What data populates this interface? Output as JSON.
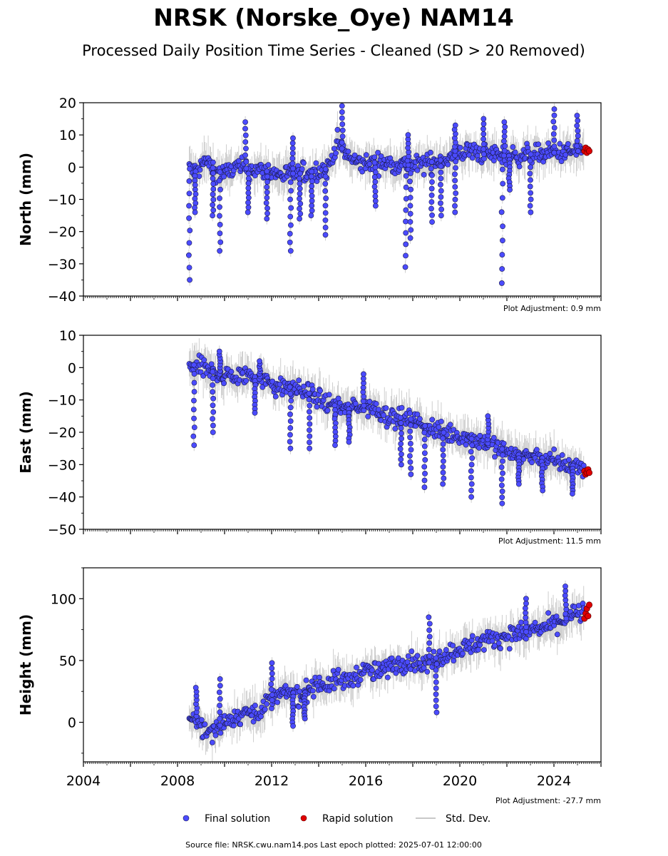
{
  "figure": {
    "title": "NRSK (Norske_Oye) NAM14",
    "subtitle": "Processed Daily Position Time Series - Cleaned (SD > 20 Removed)",
    "source_text": "Source file: NRSK.cwu.nam14.pos  Last epoch plotted: 2025-07-01 12:00:00"
  },
  "legend": {
    "final_label": "Final solution",
    "rapid_label": "Rapid solution",
    "std_label": "Std. Dev."
  },
  "colors": {
    "final": "#4b4bff",
    "final_edge": "#1a1a4a",
    "rapid": "#e00000",
    "std": "#b0b0b0"
  },
  "chart_data": [
    {
      "type": "scatter",
      "ylabel": "North (mm)",
      "plot_adjustment": "Plot Adjustment: 0.9 mm",
      "xlim": [
        2004,
        2026
      ],
      "ylim": [
        -40,
        20
      ],
      "yticks": [
        20,
        10,
        0,
        -10,
        -20,
        -30,
        -40
      ],
      "ytick_labels": [
        "20",
        "10",
        "0",
        "−10",
        "−20",
        "−30",
        "−40"
      ],
      "series": [
        {
          "name": "Final solution",
          "x": [
            2008.5,
            2008.8,
            2009.2,
            2009.6,
            2010.0,
            2010.5,
            2011.0,
            2011.5,
            2012.0,
            2012.4,
            2012.8,
            2013.2,
            2013.6,
            2014.0,
            2014.4,
            2014.8,
            2015.2,
            2015.6,
            2016.0,
            2016.5,
            2017.0,
            2017.5,
            2018.0,
            2018.5,
            2019.0,
            2019.5,
            2020.0,
            2020.5,
            2021.0,
            2021.5,
            2022.0,
            2022.5,
            2023.0,
            2023.5,
            2024.0,
            2024.5,
            2025.0,
            2025.3
          ],
          "y": [
            -0.5,
            -1.5,
            2.0,
            -1.0,
            -2.0,
            0.0,
            -0.5,
            -1.0,
            -1.5,
            -2.5,
            -2.0,
            -2.0,
            -1.5,
            -1.0,
            -0.5,
            8.0,
            3.5,
            1.5,
            1.0,
            1.5,
            1.0,
            1.0,
            0.5,
            1.0,
            2.0,
            2.5,
            4.5,
            5.0,
            4.0,
            4.0,
            3.5,
            3.5,
            4.0,
            4.0,
            4.5,
            4.5,
            5.0,
            5.5
          ]
        },
        {
          "name": "Rapid solution",
          "x": [
            2025.3,
            2025.35,
            2025.4,
            2025.45,
            2025.5
          ],
          "y": [
            5.0,
            6.0,
            4.5,
            5.5,
            5.0
          ]
        }
      ],
      "outlier_dips": [
        {
          "x": 2008.5,
          "min": -35
        },
        {
          "x": 2008.75,
          "min": -14
        },
        {
          "x": 2009.5,
          "min": -15
        },
        {
          "x": 2009.8,
          "min": -26
        },
        {
          "x": 2011.0,
          "min": -14
        },
        {
          "x": 2011.8,
          "min": -16
        },
        {
          "x": 2012.8,
          "min": -26
        },
        {
          "x": 2013.2,
          "min": -16
        },
        {
          "x": 2013.7,
          "min": -15
        },
        {
          "x": 2014.3,
          "min": -21
        },
        {
          "x": 2016.4,
          "min": -12
        },
        {
          "x": 2017.7,
          "min": -31
        },
        {
          "x": 2017.9,
          "min": -22
        },
        {
          "x": 2018.8,
          "min": -17
        },
        {
          "x": 2019.2,
          "min": -15
        },
        {
          "x": 2019.8,
          "min": -14
        },
        {
          "x": 2021.8,
          "min": -36
        },
        {
          "x": 2022.1,
          "min": -7
        },
        {
          "x": 2023.0,
          "min": -14
        }
      ],
      "spikes": [
        {
          "x": 2010.9,
          "max": 14
        },
        {
          "x": 2012.9,
          "max": 9
        },
        {
          "x": 2015.0,
          "max": 19
        },
        {
          "x": 2017.8,
          "max": 10
        },
        {
          "x": 2019.8,
          "max": 13
        },
        {
          "x": 2021.0,
          "max": 15
        },
        {
          "x": 2021.9,
          "max": 14
        },
        {
          "x": 2024.0,
          "max": 18
        },
        {
          "x": 2025.0,
          "max": 16
        }
      ]
    },
    {
      "type": "scatter",
      "ylabel": "East (mm)",
      "plot_adjustment": "Plot Adjustment: 11.5 mm",
      "xlim": [
        2004,
        2026
      ],
      "ylim": [
        -50,
        10
      ],
      "yticks": [
        10,
        0,
        -10,
        -20,
        -30,
        -40,
        -50
      ],
      "ytick_labels": [
        "10",
        "0",
        "−10",
        "−20",
        "−30",
        "−40",
        "−50"
      ],
      "series": [
        {
          "name": "Final solution",
          "x": [
            2008.5,
            2008.8,
            2009.2,
            2009.6,
            2010.0,
            2010.5,
            2011.0,
            2011.5,
            2012.0,
            2012.4,
            2012.8,
            2013.2,
            2013.6,
            2014.0,
            2014.4,
            2014.8,
            2015.2,
            2015.6,
            2016.0,
            2016.5,
            2017.0,
            2017.5,
            2018.0,
            2018.5,
            2019.0,
            2019.5,
            2020.0,
            2020.5,
            2021.0,
            2021.5,
            2022.0,
            2022.5,
            2023.0,
            2023.5,
            2024.0,
            2024.5,
            2025.0,
            2025.3
          ],
          "y": [
            1.5,
            0.5,
            -0.5,
            -1.5,
            -2.5,
            -3.0,
            -2.0,
            -3.5,
            -5.0,
            -6.5,
            -6.0,
            -7.0,
            -8.0,
            -9.5,
            -11.0,
            -12.0,
            -13.0,
            -12.5,
            -11.5,
            -13.0,
            -15.0,
            -15.5,
            -16.0,
            -18.0,
            -19.5,
            -20.5,
            -21.0,
            -22.0,
            -23.0,
            -24.0,
            -26.0,
            -27.0,
            -27.5,
            -28.0,
            -29.0,
            -30.0,
            -30.5,
            -32.0
          ]
        },
        {
          "name": "Rapid solution",
          "x": [
            2025.3,
            2025.35,
            2025.4,
            2025.45,
            2025.5
          ],
          "y": [
            -32.0,
            -33.0,
            -32.5,
            -31.5,
            -32.5
          ]
        }
      ],
      "outlier_dips": [
        {
          "x": 2008.7,
          "min": -24
        },
        {
          "x": 2009.5,
          "min": -20
        },
        {
          "x": 2011.3,
          "min": -14
        },
        {
          "x": 2012.8,
          "min": -25
        },
        {
          "x": 2013.6,
          "min": -25
        },
        {
          "x": 2014.7,
          "min": -24
        },
        {
          "x": 2015.3,
          "min": -23
        },
        {
          "x": 2017.5,
          "min": -30
        },
        {
          "x": 2017.9,
          "min": -33
        },
        {
          "x": 2018.5,
          "min": -37
        },
        {
          "x": 2019.3,
          "min": -36
        },
        {
          "x": 2020.5,
          "min": -40
        },
        {
          "x": 2021.8,
          "min": -42
        },
        {
          "x": 2022.5,
          "min": -36
        },
        {
          "x": 2023.5,
          "min": -38
        },
        {
          "x": 2024.8,
          "min": -39
        }
      ],
      "spikes": [
        {
          "x": 2009.8,
          "max": 5
        },
        {
          "x": 2011.5,
          "max": 2
        },
        {
          "x": 2015.9,
          "max": -2
        },
        {
          "x": 2021.2,
          "max": -15
        }
      ]
    },
    {
      "type": "scatter",
      "ylabel": "Height (mm)",
      "plot_adjustment": "Plot Adjustment: -27.7 mm",
      "xlim": [
        2004,
        2026
      ],
      "ylim": [
        -32,
        125
      ],
      "yticks": [
        100,
        50,
        0
      ],
      "ytick_labels": [
        "100",
        "50",
        "0"
      ],
      "xticks": [
        2004,
        2008,
        2012,
        2016,
        2020,
        2024
      ],
      "xtick_labels": [
        "2004",
        "2008",
        "2012",
        "2016",
        "2020",
        "2024"
      ],
      "series": [
        {
          "name": "Final solution",
          "x": [
            2008.5,
            2008.8,
            2009.2,
            2009.6,
            2010.0,
            2010.5,
            2011.0,
            2011.5,
            2012.0,
            2012.4,
            2012.8,
            2013.2,
            2013.6,
            2014.0,
            2014.4,
            2014.8,
            2015.2,
            2015.6,
            2016.0,
            2016.5,
            2017.0,
            2017.5,
            2018.0,
            2018.5,
            2019.0,
            2019.5,
            2020.0,
            2020.5,
            2021.0,
            2021.5,
            2022.0,
            2022.5,
            2023.0,
            2023.5,
            2024.0,
            2024.5,
            2025.0,
            2025.3
          ],
          "y": [
            -2,
            5,
            -10,
            -5,
            0,
            5,
            8,
            10,
            18,
            22,
            25,
            20,
            28,
            32,
            30,
            35,
            33,
            38,
            42,
            40,
            45,
            48,
            50,
            46,
            52,
            55,
            60,
            62,
            66,
            68,
            70,
            72,
            74,
            76,
            80,
            84,
            88,
            90
          ]
        },
        {
          "name": "Rapid solution",
          "x": [
            2025.3,
            2025.35,
            2025.4,
            2025.45,
            2025.5
          ],
          "y": [
            84,
            88,
            92,
            86,
            95
          ]
        }
      ],
      "outlier_dips": [
        {
          "x": 2012.9,
          "min": -3
        },
        {
          "x": 2013.4,
          "min": 3
        },
        {
          "x": 2019.0,
          "min": 8
        }
      ],
      "spikes": [
        {
          "x": 2008.8,
          "max": 28
        },
        {
          "x": 2009.8,
          "max": 35
        },
        {
          "x": 2012.0,
          "max": 48
        },
        {
          "x": 2018.7,
          "max": 85
        },
        {
          "x": 2022.8,
          "max": 100
        },
        {
          "x": 2024.5,
          "max": 110
        }
      ]
    }
  ]
}
